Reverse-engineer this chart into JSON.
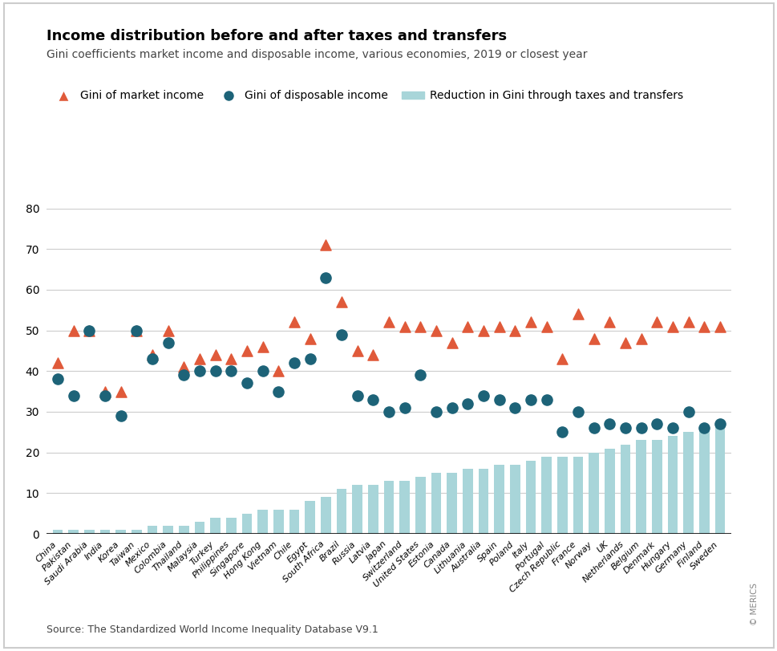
{
  "title": "Income distribution before and after taxes and transfers",
  "subtitle": "Gini coefficients market income and disposable income, various economies, 2019 or closest year",
  "source": "Source: The Standardized World Income Inequality Database V9.1",
  "countries": [
    "China",
    "Pakistan",
    "Saudi Arabia",
    "India",
    "Korea",
    "Taiwan",
    "Mexico",
    "Colombia",
    "Thailand",
    "Malaysia",
    "Turkey",
    "Philippines",
    "Singapore",
    "Hong Kong",
    "Vietnam",
    "Chile",
    "Egypt",
    "South Africa",
    "Brazil",
    "Russia",
    "Latvia",
    "Japan",
    "Switzerland",
    "United States",
    "Estonia",
    "Canada",
    "Lithuania",
    "Australia",
    "Spain",
    "Poland",
    "Italy",
    "Portugal",
    "Czech Republic",
    "France",
    "Norway",
    "UK",
    "Netherlands",
    "Belgium",
    "Denmark",
    "Hungary",
    "Germany",
    "Finland",
    "Sweden"
  ],
  "market_income": [
    42,
    50,
    50,
    35,
    35,
    50,
    44,
    50,
    41,
    43,
    44,
    43,
    45,
    46,
    40,
    52,
    48,
    71,
    57,
    45,
    44,
    52,
    51,
    51,
    50,
    47,
    51,
    50,
    51,
    50,
    52,
    51,
    43,
    54,
    48,
    52,
    47,
    48,
    52,
    51,
    52,
    51,
    51
  ],
  "disposable_income": [
    38,
    34,
    50,
    34,
    29,
    50,
    43,
    47,
    39,
    40,
    40,
    40,
    37,
    40,
    35,
    42,
    43,
    63,
    49,
    34,
    33,
    30,
    31,
    39,
    30,
    31,
    32,
    34,
    33,
    31,
    33,
    33,
    25,
    30,
    26,
    27,
    26,
    26,
    27,
    26,
    30,
    26,
    27
  ],
  "reduction": [
    1,
    1,
    1,
    1,
    1,
    1,
    2,
    2,
    2,
    3,
    4,
    4,
    5,
    6,
    6,
    6,
    8,
    9,
    11,
    12,
    12,
    13,
    13,
    14,
    15,
    15,
    16,
    16,
    17,
    17,
    18,
    19,
    19,
    19,
    20,
    21,
    22,
    23,
    23,
    24,
    25,
    26,
    27
  ],
  "bar_color": "#a8d5d9",
  "triangle_color": "#e05a3a",
  "circle_color": "#1d6378",
  "background_color": "#ffffff",
  "grid_color": "#cccccc",
  "border_color": "#cccccc",
  "ylim": [
    0,
    80
  ],
  "yticks": [
    0,
    10,
    20,
    30,
    40,
    50,
    60,
    70,
    80
  ],
  "title_fontsize": 13,
  "subtitle_fontsize": 10,
  "source_fontsize": 9
}
